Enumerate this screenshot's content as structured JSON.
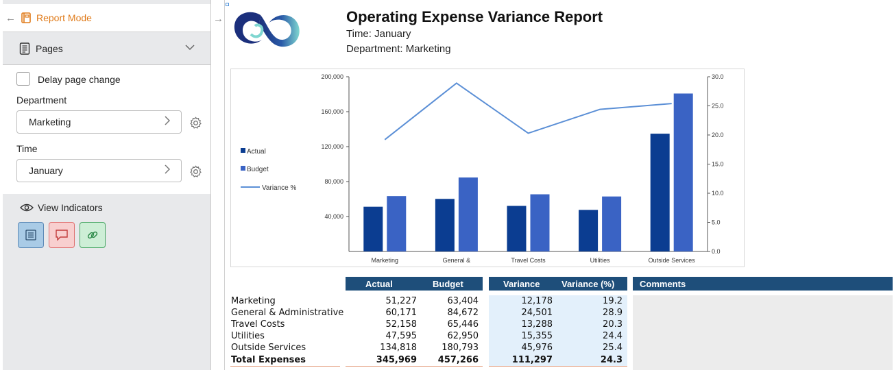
{
  "sidebar": {
    "report_mode_label": "Report Mode",
    "pages_label": "Pages",
    "delay_label": "Delay page change",
    "department_label": "Department",
    "department_value": "Marketing",
    "time_label": "Time",
    "time_value": "January",
    "view_indicators_label": "View Indicators"
  },
  "report": {
    "title": "Operating Expense Variance Report",
    "time_line": "Time: January",
    "department_line": "Department: Marketing"
  },
  "chart_data": {
    "type": "bar",
    "categories": [
      "Marketing",
      "General &",
      "Travel Costs",
      "Utilities",
      "Outside Services"
    ],
    "series": [
      {
        "name": "Actual",
        "type": "bar",
        "color": "#0b3d91",
        "values": [
          51227,
          60171,
          52158,
          47595,
          134818
        ]
      },
      {
        "name": "Budget",
        "type": "bar",
        "color": "#3a63c4",
        "values": [
          63404,
          84672,
          65446,
          62950,
          180793
        ]
      },
      {
        "name": "Variance %",
        "type": "line",
        "axis": "right",
        "color": "#5b8fd6",
        "values": [
          19.2,
          28.9,
          20.3,
          24.4,
          25.4
        ]
      }
    ],
    "y_left": {
      "range": [
        0,
        200000
      ],
      "ticks": [
        "40,000",
        "80,000",
        "120,000",
        "160,000",
        "200,000"
      ],
      "tick_values": [
        40000,
        80000,
        120000,
        160000,
        200000
      ]
    },
    "y_right": {
      "range": [
        0,
        30
      ],
      "ticks": [
        "0.0",
        "5.0",
        "10.0",
        "15.0",
        "20.0",
        "25.0",
        "30.0"
      ],
      "tick_values": [
        0,
        5,
        10,
        15,
        20,
        25,
        30
      ]
    },
    "legend": [
      "Actual",
      "Budget",
      "Variance %"
    ],
    "legend_position": "left"
  },
  "table": {
    "headers": {
      "actual": "Actual",
      "budget": "Budget",
      "variance": "Variance",
      "variance_pct": "Variance (%)",
      "comments": "Comments"
    },
    "rows": [
      {
        "label": "Marketing",
        "actual": "51,227",
        "budget": "63,404",
        "variance": "12,178",
        "variance_pct": "19.2"
      },
      {
        "label": "General & Administrative",
        "actual": "60,171",
        "budget": "84,672",
        "variance": "24,501",
        "variance_pct": "28.9"
      },
      {
        "label": "Travel Costs",
        "actual": "52,158",
        "budget": "65,446",
        "variance": "13,288",
        "variance_pct": "20.3"
      },
      {
        "label": "Utilities",
        "actual": "47,595",
        "budget": "62,950",
        "variance": "15,355",
        "variance_pct": "24.4"
      },
      {
        "label": "Outside Services",
        "actual": "134,818",
        "budget": "180,793",
        "variance": "45,976",
        "variance_pct": "25.4"
      }
    ],
    "total": {
      "label": "Total Expenses",
      "actual": "345,969",
      "budget": "457,266",
      "variance": "111,297",
      "variance_pct": "24.3"
    }
  },
  "colors": {
    "accent_orange": "#e07b1a",
    "header_blue": "#1e4e7a",
    "variance_bg": "#e3f0fb",
    "comments_bg": "#ececec"
  }
}
